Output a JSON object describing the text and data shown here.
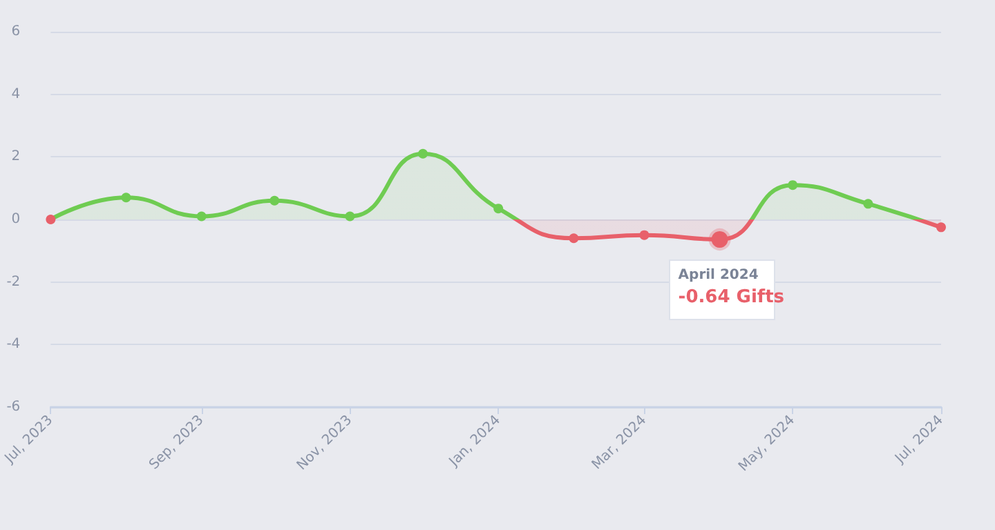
{
  "chart_data": {
    "type": "area",
    "x": [
      "2023-07",
      "2023-08",
      "2023-09",
      "2023-10",
      "2023-11",
      "2023-12",
      "2024-01",
      "2024-02",
      "2024-03",
      "2024-04",
      "2024-05",
      "2024-06",
      "2024-07"
    ],
    "series": [
      {
        "color": "#6fcc52",
        "values": [
          0,
          0.7,
          0.1,
          0.6,
          0.1,
          2.1,
          0.35,
          -0.6,
          -0.5,
          -0.64,
          1.1,
          0.5,
          -0.25
        ],
        "colors": [
          "#e8606a",
          "#6fcc52",
          "#6fcc52",
          "#6fcc52",
          "#6fcc52",
          "#6fcc52",
          "#6fcc52",
          "#e8606a",
          "#e8606a",
          "#e8606a",
          "#6fcc52",
          "#6fcc52",
          "#e8606a"
        ]
      }
    ],
    "xlim": [
      "2023-07",
      "2024-07"
    ],
    "xticks": [
      {
        "value": "2023-07",
        "label": "Jul, 2023"
      },
      {
        "value": "2023-09",
        "label": "Sep, 2023"
      },
      {
        "value": "2023-11",
        "label": "Nov, 2023"
      },
      {
        "value": "2024-01",
        "label": "Jan, 2024"
      },
      {
        "value": "2024-03",
        "label": "Mar, 2024"
      },
      {
        "value": "2024-05",
        "label": "May, 2024"
      },
      {
        "value": "2024-07",
        "label": "Jul, 2024"
      }
    ],
    "ylim": [
      -6,
      6
    ],
    "yticks": [
      -6,
      -4,
      -2,
      0,
      2,
      4,
      6
    ],
    "grid": "y",
    "marker": "circle",
    "annotations": [
      {
        "text": "April 2024",
        "x": "2024-04",
        "y": -0.64
      },
      {
        "text": "-0.64 Gifts",
        "x": "2024-04",
        "y": -0.64
      }
    ]
  }
}
